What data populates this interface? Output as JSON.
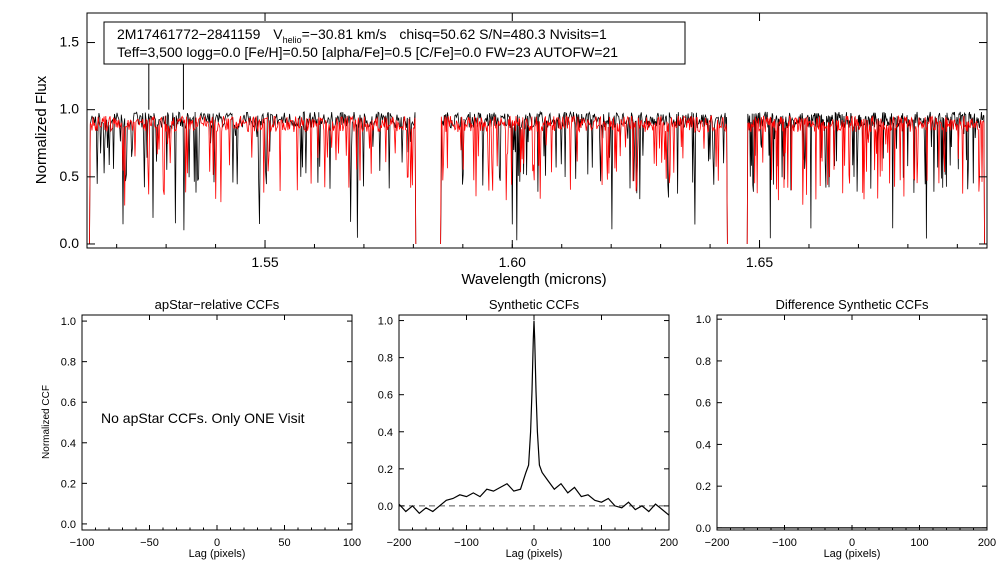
{
  "chart_data": [
    {
      "type": "line",
      "title": "",
      "xlabel": "Wavelength (microns)",
      "ylabel": "Normalized Flux",
      "xlim": [
        1.514,
        1.696
      ],
      "ylim": [
        -0.03,
        1.72
      ],
      "xticks": [
        1.55,
        1.6,
        1.65
      ],
      "xtick_labels": [
        "1.55",
        "1.60",
        "1.65"
      ],
      "yticks": [
        0.0,
        0.5,
        1.0,
        1.5
      ],
      "ytick_labels": [
        "0.0",
        "0.5",
        "1.0",
        "1.5"
      ],
      "segments": [
        [
          1.5145,
          1.5805
        ],
        [
          1.5855,
          1.6435
        ],
        [
          1.6475,
          1.6955
        ]
      ],
      "series": [
        {
          "name": "observed spectrum",
          "color": "#000000",
          "level": 0.9
        },
        {
          "name": "best-fit synthetic",
          "color": "#ff0000",
          "level": 0.87
        }
      ],
      "spikes": [
        1.5265,
        1.5335
      ],
      "annotation": {
        "star": "2M17461772−2841159",
        "v_prefix": "V",
        "v_sub": "helio",
        "v_value": "=−30.81 km/s",
        "stats": "chisq=50.62  S/N=480.3  Nvisits=1",
        "line2_a": "Teff=3,500 logg=0.0 [Fe/H",
        "line2_b": "]=0.50 [alpha/Fe]=0.5 [C/Fe]=0.0 FW=23 AUTOFW=21"
      }
    },
    {
      "type": "line",
      "title": "apStar−relative CCFs",
      "xlabel": "Lag (pixels)",
      "ylabel": "Normalized CCF",
      "xlim": [
        -100,
        100
      ],
      "ylim": [
        -0.03,
        1.03
      ],
      "xticks": [
        -100,
        -50,
        0,
        50,
        100
      ],
      "xtick_labels": [
        "−100",
        "−50",
        "0",
        "50",
        "100"
      ],
      "yticks": [
        0.0,
        0.2,
        0.4,
        0.6,
        0.8,
        1.0
      ],
      "ytick_labels": [
        "0.0",
        "0.2",
        "0.4",
        "0.6",
        "0.8",
        "1.0"
      ],
      "message": "No apStar CCFs.  Only ONE Visit"
    },
    {
      "type": "line",
      "title": "Synthetic CCFs",
      "xlabel": "Lag (pixels)",
      "xlim": [
        -200,
        200
      ],
      "ylim": [
        -0.13,
        1.03
      ],
      "xticks": [
        -200,
        -100,
        0,
        100,
        200
      ],
      "xtick_labels": [
        "−200",
        "−100",
        "0",
        "100",
        "200"
      ],
      "yticks": [
        0.0,
        0.2,
        0.4,
        0.6,
        0.8,
        1.0
      ],
      "ytick_labels": [
        "0.0",
        "0.2",
        "0.4",
        "0.6",
        "0.8",
        "1.0"
      ],
      "baseline": 0.0,
      "peak": {
        "lag": 0,
        "value": 1.0
      },
      "x": [
        -200,
        -190,
        -180,
        -170,
        -160,
        -150,
        -140,
        -130,
        -120,
        -110,
        -100,
        -90,
        -80,
        -70,
        -60,
        -50,
        -40,
        -30,
        -20,
        -12,
        -8,
        -5,
        -3,
        -1,
        0,
        1,
        3,
        5,
        8,
        12,
        20,
        30,
        40,
        50,
        60,
        70,
        80,
        90,
        100,
        110,
        120,
        130,
        140,
        150,
        160,
        170,
        180,
        190,
        200
      ],
      "y": [
        0.01,
        -0.03,
        0.0,
        -0.04,
        -0.01,
        -0.03,
        0.0,
        0.03,
        0.04,
        0.06,
        0.05,
        0.07,
        0.05,
        0.09,
        0.08,
        0.1,
        0.12,
        0.08,
        0.09,
        0.18,
        0.22,
        0.4,
        0.62,
        0.9,
        1.0,
        0.9,
        0.62,
        0.4,
        0.22,
        0.18,
        0.14,
        0.09,
        0.12,
        0.07,
        0.1,
        0.05,
        0.06,
        0.03,
        0.02,
        0.04,
        0.0,
        -0.01,
        0.02,
        -0.02,
        0.0,
        -0.03,
        0.01,
        -0.02,
        -0.05
      ]
    },
    {
      "type": "line",
      "title": "Difference Synthetic CCFs",
      "xlabel": "Lag (pixels)",
      "xlim": [
        -200,
        200
      ],
      "ylim": [
        -0.01,
        1.02
      ],
      "xticks": [
        -200,
        -100,
        0,
        100,
        200
      ],
      "xtick_labels": [
        "−200",
        "−100",
        "0",
        "100",
        "200"
      ],
      "yticks": [
        0.0,
        0.2,
        0.4,
        0.6,
        0.8,
        1.0
      ],
      "ytick_labels": [
        "0.0",
        "0.2",
        "0.4",
        "0.6",
        "0.8",
        "1.0"
      ],
      "x": [
        -200,
        200
      ],
      "y": [
        0.0,
        0.0
      ]
    }
  ]
}
